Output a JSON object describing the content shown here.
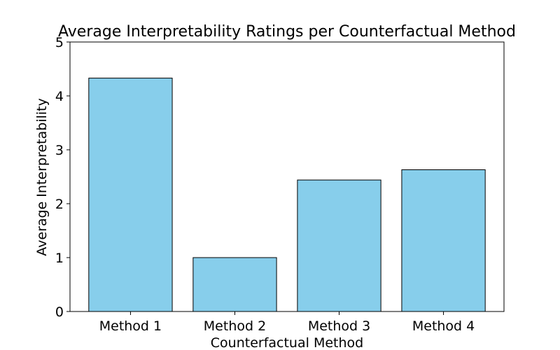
{
  "chart_data": {
    "type": "bar",
    "title": "Average Interpretability Ratings per Counterfactual Method",
    "xlabel": "Counterfactual Method",
    "ylabel": "Average Interpretability",
    "categories": [
      "Method 1",
      "Method 2",
      "Method 3",
      "Method 4"
    ],
    "values": [
      4.33,
      1.0,
      2.44,
      2.63
    ],
    "ylim": [
      0,
      5
    ],
    "yticks": [
      "0",
      "1",
      "2",
      "3",
      "4",
      "5"
    ],
    "grid": false,
    "legend": "none",
    "colors": {
      "bar_fill": "#87CEEB",
      "bar_edge": "#000000",
      "axis": "#000000"
    }
  }
}
